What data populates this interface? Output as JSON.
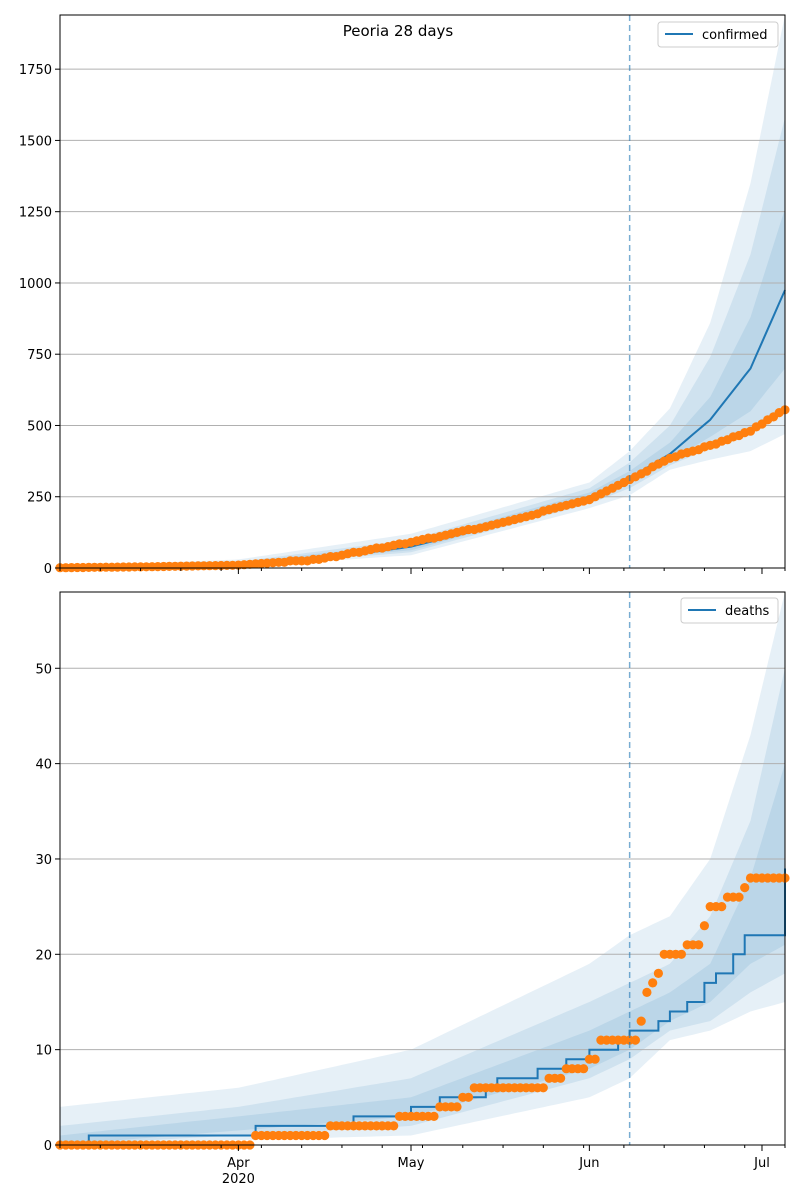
{
  "chart_data": [
    {
      "type": "line",
      "title": "Peoria 28 days",
      "xlabel": "",
      "ylabel": "",
      "x_range": [
        "2020-03-01",
        "2020-07-05"
      ],
      "ylim": [
        0,
        1940
      ],
      "yticks": [
        0,
        250,
        500,
        750,
        1000,
        1250,
        1500,
        1750
      ],
      "grid": "horizontal",
      "legend_position": "top-right",
      "forecast_start": "2020-06-08",
      "colors": {
        "forecast": "#1f77b4",
        "observed": "#ff7f0e",
        "band": "#1f77b4"
      },
      "series": [
        {
          "name": "confirmed",
          "kind": "forecast-median",
          "points": [
            [
              "2020-03-01",
              1
            ],
            [
              "2020-03-15",
              5
            ],
            [
              "2020-04-01",
              14
            ],
            [
              "2020-04-15",
              30
            ],
            [
              "2020-05-01",
              75
            ],
            [
              "2020-05-15",
              145
            ],
            [
              "2020-06-01",
              250
            ],
            [
              "2020-06-08",
              315
            ],
            [
              "2020-06-15",
              400
            ],
            [
              "2020-06-22",
              520
            ],
            [
              "2020-06-29",
              700
            ],
            [
              "2020-07-05",
              975
            ]
          ]
        },
        {
          "kind": "observed",
          "points": [
            [
              "2020-03-01",
              1
            ],
            [
              "2020-03-15",
              4
            ],
            [
              "2020-04-01",
              10
            ],
            [
              "2020-04-15",
              30
            ],
            [
              "2020-05-01",
              90
            ],
            [
              "2020-05-15",
              150
            ],
            [
              "2020-06-01",
              240
            ],
            [
              "2020-06-08",
              310
            ],
            [
              "2020-06-15",
              385
            ],
            [
              "2020-06-22",
              430
            ],
            [
              "2020-06-29",
              480
            ],
            [
              "2020-07-05",
              555
            ]
          ]
        }
      ],
      "bands": [
        {
          "level": "outer",
          "lower": [
            [
              "2020-03-01",
              0
            ],
            [
              "2020-04-01",
              4
            ],
            [
              "2020-05-01",
              45
            ],
            [
              "2020-06-01",
              210
            ],
            [
              "2020-06-08",
              255
            ],
            [
              "2020-06-15",
              345
            ],
            [
              "2020-06-22",
              380
            ],
            [
              "2020-06-29",
              410
            ],
            [
              "2020-07-05",
              470
            ]
          ],
          "upper": [
            [
              "2020-03-01",
              5
            ],
            [
              "2020-04-01",
              30
            ],
            [
              "2020-05-01",
              120
            ],
            [
              "2020-06-01",
              300
            ],
            [
              "2020-06-08",
              410
            ],
            [
              "2020-06-15",
              560
            ],
            [
              "2020-06-22",
              860
            ],
            [
              "2020-06-29",
              1350
            ],
            [
              "2020-07-05",
              1940
            ]
          ]
        },
        {
          "level": "middle",
          "lower": [
            [
              "2020-03-01",
              0
            ],
            [
              "2020-04-01",
              7
            ],
            [
              "2020-05-01",
              55
            ],
            [
              "2020-06-01",
              225
            ],
            [
              "2020-06-08",
              280
            ],
            [
              "2020-06-15",
              360
            ],
            [
              "2020-06-22",
              420
            ],
            [
              "2020-06-29",
              480
            ],
            [
              "2020-07-05",
              560
            ]
          ],
          "upper": [
            [
              "2020-03-01",
              3
            ],
            [
              "2020-04-01",
              22
            ],
            [
              "2020-05-01",
              100
            ],
            [
              "2020-06-01",
              280
            ],
            [
              "2020-06-08",
              370
            ],
            [
              "2020-06-15",
              500
            ],
            [
              "2020-06-22",
              740
            ],
            [
              "2020-06-29",
              1100
            ],
            [
              "2020-07-05",
              1580
            ]
          ]
        },
        {
          "level": "inner",
          "lower": [
            [
              "2020-03-01",
              0
            ],
            [
              "2020-04-01",
              9
            ],
            [
              "2020-05-01",
              62
            ],
            [
              "2020-06-01",
              235
            ],
            [
              "2020-06-08",
              295
            ],
            [
              "2020-06-15",
              375
            ],
            [
              "2020-06-22",
              460
            ],
            [
              "2020-06-29",
              550
            ],
            [
              "2020-07-05",
              700
            ]
          ],
          "upper": [
            [
              "2020-03-01",
              2
            ],
            [
              "2020-04-01",
              18
            ],
            [
              "2020-05-01",
              88
            ],
            [
              "2020-06-01",
              265
            ],
            [
              "2020-06-08",
              340
            ],
            [
              "2020-06-15",
              440
            ],
            [
              "2020-06-22",
              600
            ],
            [
              "2020-06-29",
              880
            ],
            [
              "2020-07-05",
              1260
            ]
          ]
        }
      ]
    },
    {
      "type": "line",
      "xlabel": "",
      "ylabel": "",
      "x_range": [
        "2020-03-01",
        "2020-07-05"
      ],
      "ylim": [
        0,
        58
      ],
      "yticks": [
        0,
        10,
        20,
        30,
        40,
        50
      ],
      "xticks": [
        {
          "date": "2020-04-01",
          "label": "Apr",
          "sublabel": "2020"
        },
        {
          "date": "2020-05-01",
          "label": "May",
          "sublabel": ""
        },
        {
          "date": "2020-06-01",
          "label": "Jun",
          "sublabel": ""
        },
        {
          "date": "2020-07-01",
          "label": "Jul",
          "sublabel": ""
        }
      ],
      "grid": "horizontal",
      "legend_position": "top-right",
      "forecast_start": "2020-06-08",
      "colors": {
        "forecast": "#1f77b4",
        "observed": "#ff7f0e",
        "band": "#1f77b4"
      },
      "series": [
        {
          "name": "deaths",
          "kind": "forecast-median",
          "step": true,
          "points": [
            [
              "2020-03-01",
              0
            ],
            [
              "2020-03-06",
              1
            ],
            [
              "2020-04-04",
              2
            ],
            [
              "2020-04-21",
              3
            ],
            [
              "2020-05-01",
              4
            ],
            [
              "2020-05-06",
              5
            ],
            [
              "2020-05-14",
              6
            ],
            [
              "2020-05-16",
              7
            ],
            [
              "2020-05-23",
              8
            ],
            [
              "2020-05-28",
              9
            ],
            [
              "2020-06-01",
              10
            ],
            [
              "2020-06-06",
              11
            ],
            [
              "2020-06-08",
              12
            ],
            [
              "2020-06-10",
              12
            ],
            [
              "2020-06-13",
              13
            ],
            [
              "2020-06-15",
              14
            ],
            [
              "2020-06-18",
              15
            ],
            [
              "2020-06-21",
              17
            ],
            [
              "2020-06-23",
              18
            ],
            [
              "2020-06-26",
              20
            ],
            [
              "2020-06-28",
              22
            ],
            [
              "2020-07-05",
              29
            ]
          ]
        },
        {
          "kind": "observed",
          "points": [
            [
              "2020-03-01",
              0
            ],
            [
              "2020-04-04",
              1
            ],
            [
              "2020-04-17",
              2
            ],
            [
              "2020-04-29",
              3
            ],
            [
              "2020-05-06",
              4
            ],
            [
              "2020-05-10",
              5
            ],
            [
              "2020-05-12",
              6
            ],
            [
              "2020-05-25",
              7
            ],
            [
              "2020-05-28",
              8
            ],
            [
              "2020-06-01",
              9
            ],
            [
              "2020-06-03",
              11
            ],
            [
              "2020-06-09",
              11
            ],
            [
              "2020-06-10",
              13
            ],
            [
              "2020-06-11",
              16
            ],
            [
              "2020-06-12",
              17
            ],
            [
              "2020-06-13",
              18
            ],
            [
              "2020-06-14",
              20
            ],
            [
              "2020-06-18",
              21
            ],
            [
              "2020-06-21",
              23
            ],
            [
              "2020-06-22",
              25
            ],
            [
              "2020-06-25",
              26
            ],
            [
              "2020-06-28",
              27
            ],
            [
              "2020-06-29",
              28
            ],
            [
              "2020-07-05",
              28
            ]
          ]
        }
      ],
      "bands": [
        {
          "level": "outer",
          "lower": [
            [
              "2020-03-01",
              0
            ],
            [
              "2020-05-01",
              1
            ],
            [
              "2020-06-01",
              5
            ],
            [
              "2020-06-08",
              7
            ],
            [
              "2020-06-15",
              11
            ],
            [
              "2020-06-22",
              12
            ],
            [
              "2020-06-29",
              14
            ],
            [
              "2020-07-05",
              15
            ]
          ],
          "upper": [
            [
              "2020-03-01",
              4
            ],
            [
              "2020-04-01",
              6
            ],
            [
              "2020-05-01",
              10
            ],
            [
              "2020-06-01",
              19
            ],
            [
              "2020-06-08",
              22
            ],
            [
              "2020-06-15",
              24
            ],
            [
              "2020-06-22",
              30
            ],
            [
              "2020-06-29",
              43
            ],
            [
              "2020-07-05",
              58
            ]
          ]
        },
        {
          "level": "middle",
          "lower": [
            [
              "2020-03-01",
              0
            ],
            [
              "2020-05-01",
              2
            ],
            [
              "2020-06-01",
              7
            ],
            [
              "2020-06-08",
              9
            ],
            [
              "2020-06-15",
              12
            ],
            [
              "2020-06-22",
              13
            ],
            [
              "2020-06-29",
              16
            ],
            [
              "2020-07-05",
              18
            ]
          ],
          "upper": [
            [
              "2020-03-01",
              2
            ],
            [
              "2020-04-01",
              4
            ],
            [
              "2020-05-01",
              7
            ],
            [
              "2020-06-01",
              15
            ],
            [
              "2020-06-08",
              17
            ],
            [
              "2020-06-15",
              19
            ],
            [
              "2020-06-22",
              24
            ],
            [
              "2020-06-29",
              34
            ],
            [
              "2020-07-05",
              50
            ]
          ]
        },
        {
          "level": "inner",
          "lower": [
            [
              "2020-03-01",
              0
            ],
            [
              "2020-05-01",
              3
            ],
            [
              "2020-06-01",
              8
            ],
            [
              "2020-06-08",
              10
            ],
            [
              "2020-06-15",
              13
            ],
            [
              "2020-06-22",
              15
            ],
            [
              "2020-06-29",
              19
            ],
            [
              "2020-07-05",
              21
            ]
          ],
          "upper": [
            [
              "2020-03-01",
              1
            ],
            [
              "2020-04-01",
              3
            ],
            [
              "2020-05-01",
              5
            ],
            [
              "2020-06-01",
              12
            ],
            [
              "2020-06-08",
              14
            ],
            [
              "2020-06-15",
              16
            ],
            [
              "2020-06-22",
              19
            ],
            [
              "2020-06-29",
              28
            ],
            [
              "2020-07-05",
              40
            ]
          ]
        }
      ]
    }
  ]
}
